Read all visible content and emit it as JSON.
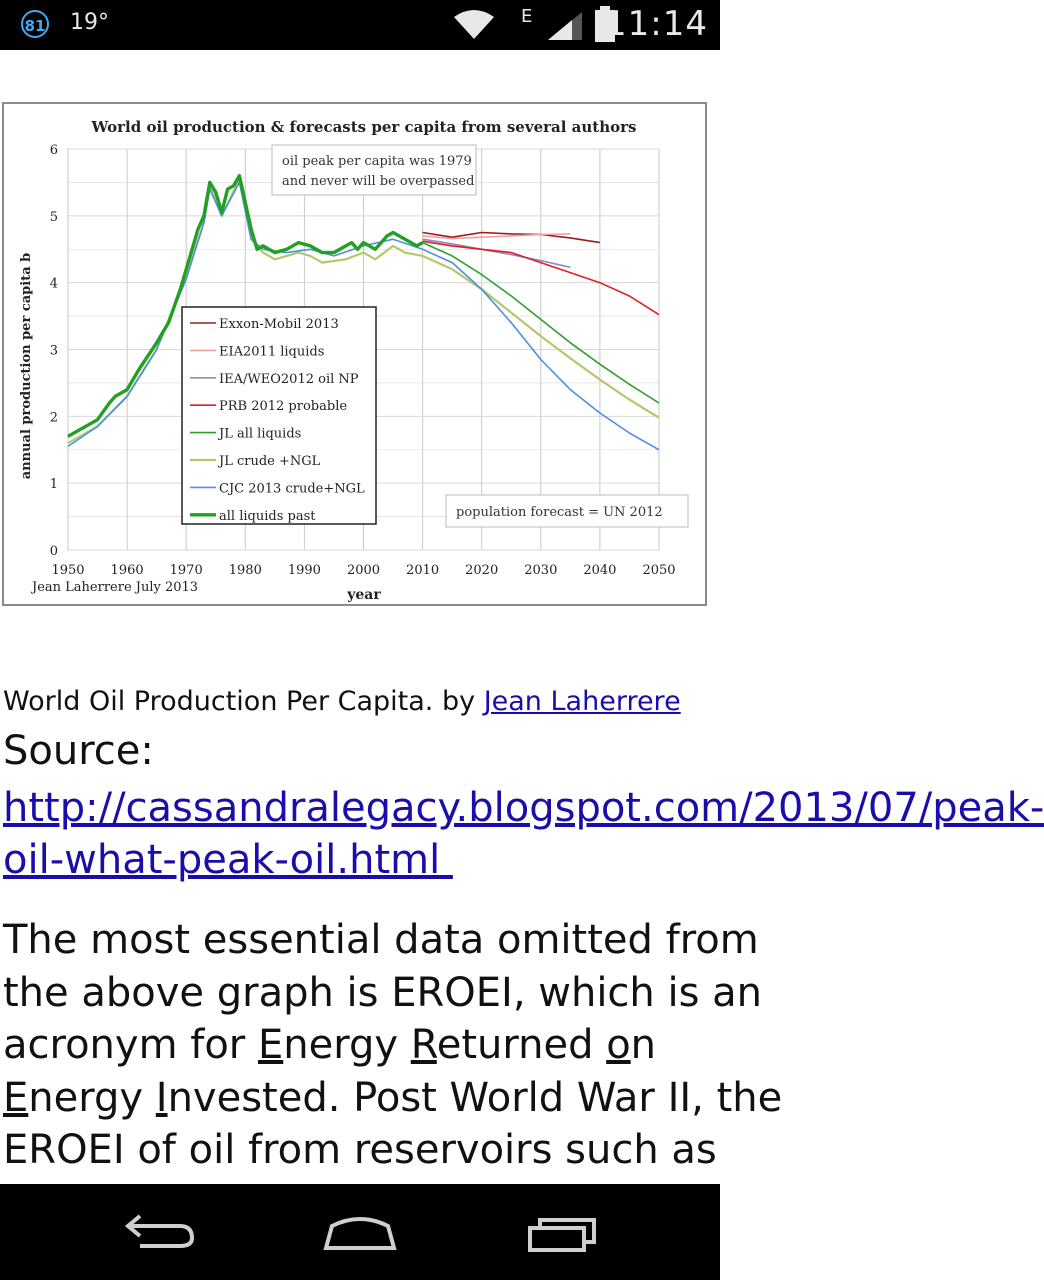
{
  "status_bar": {
    "notification_count": "81",
    "temperature": "19°",
    "network_type": "E",
    "time": "11:14"
  },
  "chart_data": {
    "type": "line",
    "title": "World oil production & forecasts per capita from several authors",
    "xlabel": "year",
    "ylabel": "annual production per capita b",
    "xlim": [
      1950,
      2050
    ],
    "ylim": [
      0,
      6
    ],
    "x_ticks": [
      "1950",
      "1960",
      "1970",
      "1980",
      "1990",
      "2000",
      "2010",
      "2020",
      "2030",
      "2040",
      "2050"
    ],
    "y_ticks": [
      "0",
      "1",
      "2",
      "3",
      "4",
      "5",
      "6"
    ],
    "grid": true,
    "legend_position": "center-left",
    "annotations": {
      "peak_note_line1": "oil peak per capita was 1979",
      "peak_note_line2": "and never will be overpassed",
      "population_note": "population forecast = UN 2012",
      "credit": "Jean Laherrere July 2013"
    },
    "series": [
      {
        "name": "Exxon-Mobil 2013",
        "color": "#9b1c1c",
        "width": 1.6,
        "points": [
          [
            2010,
            4.75
          ],
          [
            2015,
            4.68
          ],
          [
            2020,
            4.75
          ],
          [
            2025,
            4.73
          ],
          [
            2030,
            4.72
          ],
          [
            2035,
            4.67
          ],
          [
            2040,
            4.6
          ]
        ]
      },
      {
        "name": "EIA2011 liquids",
        "color": "#f0a0a0",
        "width": 1.6,
        "points": [
          [
            2010,
            4.7
          ],
          [
            2015,
            4.66
          ],
          [
            2020,
            4.68
          ],
          [
            2025,
            4.7
          ],
          [
            2030,
            4.72
          ],
          [
            2035,
            4.73
          ]
        ]
      },
      {
        "name": "IEA/WEO2012 oil NP",
        "color": "#8a8ac0",
        "width": 1.6,
        "points": [
          [
            2010,
            4.65
          ],
          [
            2015,
            4.58
          ],
          [
            2020,
            4.5
          ],
          [
            2025,
            4.42
          ],
          [
            2030,
            4.33
          ],
          [
            2035,
            4.23
          ]
        ]
      },
      {
        "name": "PRB 2012 probable",
        "color": "#e02020",
        "width": 1.6,
        "points": [
          [
            2010,
            4.62
          ],
          [
            2015,
            4.55
          ],
          [
            2020,
            4.5
          ],
          [
            2025,
            4.45
          ],
          [
            2030,
            4.3
          ],
          [
            2035,
            4.15
          ],
          [
            2040,
            4.0
          ],
          [
            2045,
            3.8
          ],
          [
            2050,
            3.52
          ]
        ]
      },
      {
        "name": "JL all liquids",
        "color": "#2ea02e",
        "width": 1.6,
        "points": [
          [
            2010,
            4.6
          ],
          [
            2015,
            4.4
          ],
          [
            2020,
            4.12
          ],
          [
            2025,
            3.8
          ],
          [
            2030,
            3.45
          ],
          [
            2035,
            3.1
          ],
          [
            2040,
            2.78
          ],
          [
            2045,
            2.48
          ],
          [
            2050,
            2.2
          ]
        ]
      },
      {
        "name": "JL crude +NGL",
        "color": "#b3c86a",
        "width": 2.2,
        "points": [
          [
            2010,
            4.4
          ],
          [
            2015,
            4.2
          ],
          [
            2020,
            3.9
          ],
          [
            2025,
            3.55
          ],
          [
            2030,
            3.2
          ],
          [
            2035,
            2.87
          ],
          [
            2040,
            2.55
          ],
          [
            2045,
            2.25
          ],
          [
            2050,
            1.98
          ]
        ]
      },
      {
        "name": "CJC 2013 crude+NGL",
        "color": "#4f8fdf",
        "width": 1.6,
        "points": [
          [
            2010,
            4.5
          ],
          [
            2015,
            4.3
          ],
          [
            2020,
            3.9
          ],
          [
            2025,
            3.4
          ],
          [
            2030,
            2.85
          ],
          [
            2035,
            2.4
          ],
          [
            2040,
            2.05
          ],
          [
            2045,
            1.75
          ],
          [
            2050,
            1.5
          ]
        ]
      },
      {
        "name": "all liquids past",
        "color": "#22a022",
        "width": 3.4,
        "points": [
          [
            1950,
            1.7
          ],
          [
            1952,
            1.8
          ],
          [
            1955,
            1.95
          ],
          [
            1957,
            2.2
          ],
          [
            1958,
            2.3
          ],
          [
            1960,
            2.4
          ],
          [
            1962,
            2.7
          ],
          [
            1965,
            3.1
          ],
          [
            1967,
            3.4
          ],
          [
            1969,
            3.9
          ],
          [
            1970,
            4.2
          ],
          [
            1971,
            4.5
          ],
          [
            1972,
            4.8
          ],
          [
            1973,
            5.0
          ],
          [
            1974,
            5.5
          ],
          [
            1975,
            5.35
          ],
          [
            1976,
            5.05
          ],
          [
            1977,
            5.4
          ],
          [
            1978,
            5.45
          ],
          [
            1979,
            5.6
          ],
          [
            1980,
            5.2
          ],
          [
            1981,
            4.8
          ],
          [
            1982,
            4.5
          ],
          [
            1983,
            4.55
          ],
          [
            1985,
            4.45
          ],
          [
            1987,
            4.5
          ],
          [
            1989,
            4.6
          ],
          [
            1991,
            4.55
          ],
          [
            1993,
            4.45
          ],
          [
            1995,
            4.45
          ],
          [
            1997,
            4.55
          ],
          [
            1998,
            4.6
          ],
          [
            1999,
            4.5
          ],
          [
            2000,
            4.6
          ],
          [
            2002,
            4.5
          ],
          [
            2004,
            4.7
          ],
          [
            2005,
            4.75
          ],
          [
            2007,
            4.65
          ],
          [
            2009,
            4.55
          ],
          [
            2010,
            4.6
          ]
        ]
      },
      {
        "name": "crude past (light)",
        "color": "#b3c86a",
        "width": 2.2,
        "legend": false,
        "points": [
          [
            1950,
            1.6
          ],
          [
            1955,
            1.85
          ],
          [
            1960,
            2.3
          ],
          [
            1965,
            3.0
          ],
          [
            1970,
            4.1
          ],
          [
            1973,
            4.9
          ],
          [
            1974,
            5.45
          ],
          [
            1976,
            5.0
          ],
          [
            1979,
            5.55
          ],
          [
            1981,
            4.65
          ],
          [
            1983,
            4.45
          ],
          [
            1985,
            4.35
          ],
          [
            1989,
            4.45
          ],
          [
            1991,
            4.4
          ],
          [
            1993,
            4.3
          ],
          [
            1997,
            4.35
          ],
          [
            2000,
            4.45
          ],
          [
            2002,
            4.35
          ],
          [
            2005,
            4.55
          ],
          [
            2007,
            4.45
          ],
          [
            2010,
            4.4
          ]
        ]
      },
      {
        "name": "CJC past",
        "color": "#4f8fdf",
        "width": 1.6,
        "legend": false,
        "points": [
          [
            1950,
            1.55
          ],
          [
            1955,
            1.85
          ],
          [
            1960,
            2.3
          ],
          [
            1965,
            3.0
          ],
          [
            1970,
            4.05
          ],
          [
            1973,
            4.9
          ],
          [
            1974,
            5.4
          ],
          [
            1976,
            5.0
          ],
          [
            1979,
            5.5
          ],
          [
            1981,
            4.65
          ],
          [
            1983,
            4.5
          ],
          [
            1987,
            4.45
          ],
          [
            1991,
            4.5
          ],
          [
            1995,
            4.4
          ],
          [
            2000,
            4.55
          ],
          [
            2005,
            4.65
          ],
          [
            2010,
            4.5
          ]
        ]
      }
    ]
  },
  "article": {
    "caption_prefix": "World Oil Production Per Capita. by ",
    "caption_author_link": "Jean Laherrere",
    "source_label": "Source:",
    "source_url": "http://cassandralegacy.blogspot.com/2013/07/peak-\noil-what-peak-oil.html ",
    "body_lines": [
      "The most essential data omitted from",
      "the above graph is EROEI, which is an",
      "acronym for |E|nergy |R|eturned |o|n",
      "|E|nergy |I|nvested. Post World War II, the",
      "EROEI of oil from reservoirs such as"
    ]
  },
  "nav_bar": {
    "back": "back-icon",
    "home": "home-icon",
    "recents": "recents-icon"
  }
}
